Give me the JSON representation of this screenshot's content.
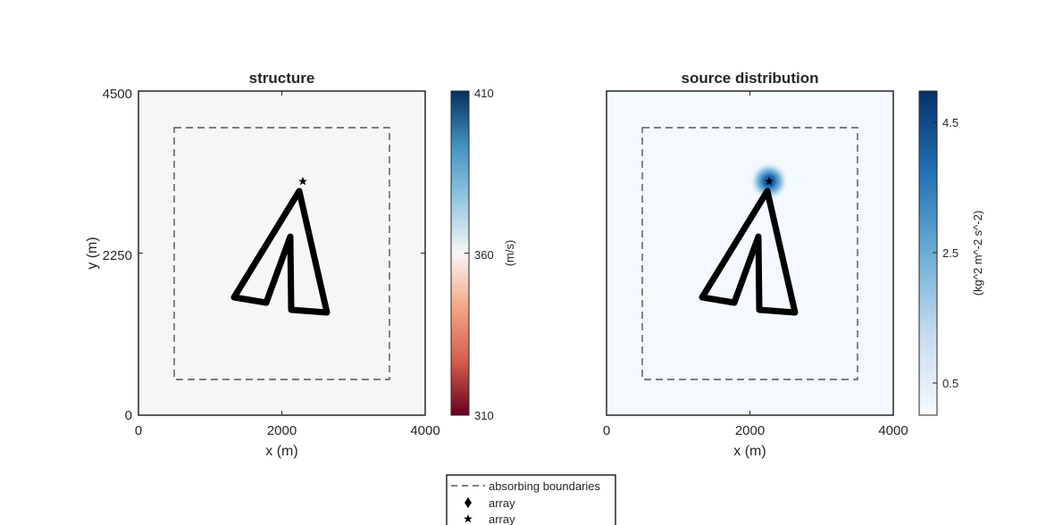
{
  "chart_data": [
    {
      "type": "heatmap",
      "title": "structure",
      "xlabel": "x (m)",
      "ylabel": "y (m)",
      "xlim": [
        0,
        4000
      ],
      "ylim": [
        0,
        4500
      ],
      "xticks": [
        0,
        2000,
        4000
      ],
      "yticks": [
        0,
        2250,
        4500
      ],
      "field": "uniform",
      "field_value": 358,
      "colorbar": {
        "label": "(m/s)",
        "ticks": [
          310,
          360,
          410
        ],
        "range": [
          310,
          410
        ],
        "colormap": "red-white-blue"
      },
      "absorbing_boundary": {
        "x": [
          500,
          3500
        ],
        "y": [
          500,
          4000
        ]
      },
      "array_path": [
        [
          2250,
          3150
        ],
        [
          1330,
          1640
        ],
        [
          1800,
          1560
        ],
        [
          2150,
          2480
        ],
        [
          2150,
          1460
        ],
        [
          2620,
          1420
        ],
        [
          2250,
          3150
        ]
      ],
      "source": [
        2300,
        3250
      ]
    },
    {
      "type": "heatmap",
      "title": "source distribution",
      "xlabel": "x (m)",
      "ylabel": "",
      "xlim": [
        0,
        4000
      ],
      "ylim": [
        0,
        4500
      ],
      "xticks": [
        0,
        2000,
        4000
      ],
      "yticks": [],
      "field": "gaussian",
      "field_center": [
        2270,
        3250
      ],
      "field_sigma": 130,
      "field_peak": 4.9,
      "field_background": 0.02,
      "colorbar": {
        "label": "(kg^2 m^-2 s^-2)",
        "ticks": [
          0.5,
          2.5,
          4.5
        ],
        "range": [
          0,
          4.9
        ],
        "colormap": "white-blue"
      },
      "absorbing_boundary": {
        "x": [
          500,
          3500
        ],
        "y": [
          500,
          4000
        ]
      },
      "array_path": [
        [
          2250,
          3150
        ],
        [
          1330,
          1640
        ],
        [
          1800,
          1560
        ],
        [
          2150,
          2480
        ],
        [
          2150,
          1460
        ],
        [
          2620,
          1420
        ],
        [
          2250,
          3150
        ]
      ],
      "source": [
        2300,
        3250
      ]
    }
  ],
  "legend": {
    "items": [
      {
        "label": "absorbing boundaries",
        "marker": "dashed-line"
      },
      {
        "label": "array",
        "marker": "diamond"
      },
      {
        "label": "array",
        "marker": "star"
      }
    ]
  }
}
